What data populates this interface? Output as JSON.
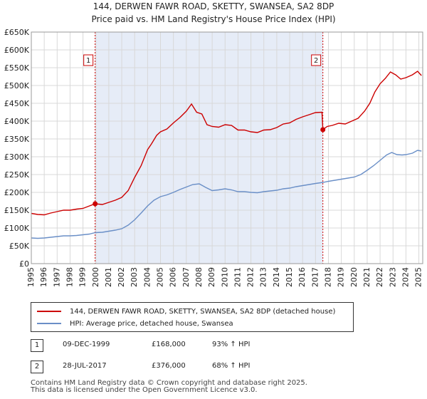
{
  "colors": {
    "property": "#cc0000",
    "hpi": "#6a8fc7",
    "shade": "#e6ecf7",
    "grid": "#d8d8d8"
  },
  "chart_data": {
    "type": "line",
    "title": "144, DERWEN FAWR ROAD, SKETTY, SWANSEA, SA2 8DP",
    "subtitle": "Price paid vs. HM Land Registry's House Price Index (HPI)",
    "ylim": [
      0,
      650000
    ],
    "xlim": [
      1995,
      2025.3
    ],
    "y_ticks": [
      0,
      50000,
      100000,
      150000,
      200000,
      250000,
      300000,
      350000,
      400000,
      450000,
      500000,
      550000,
      600000,
      650000
    ],
    "y_tick_labels": [
      "£0",
      "£50K",
      "£100K",
      "£150K",
      "£200K",
      "£250K",
      "£300K",
      "£350K",
      "£400K",
      "£450K",
      "£500K",
      "£550K",
      "£600K",
      "£650K"
    ],
    "x_ticks": [
      1995,
      1996,
      1997,
      1998,
      1999,
      2000,
      2001,
      2002,
      2003,
      2004,
      2005,
      2006,
      2007,
      2008,
      2009,
      2010,
      2011,
      2012,
      2013,
      2014,
      2015,
      2016,
      2017,
      2018,
      2019,
      2020,
      2021,
      2022,
      2023,
      2024,
      2025
    ],
    "x_tick_labels": [
      "1995",
      "1996",
      "1997",
      "1998",
      "1999",
      "2000",
      "2001",
      "2002",
      "2003",
      "2004",
      "2005",
      "2006",
      "2007",
      "2008",
      "2009",
      "2010",
      "2011",
      "2012",
      "2013",
      "2014",
      "2015",
      "2016",
      "2017",
      "2018",
      "2019",
      "2020",
      "2021",
      "2022",
      "2023",
      "2024",
      "2025"
    ],
    "grid": true,
    "shaded_period": [
      1999.94,
      2017.57
    ],
    "series": [
      {
        "name": "144, DERWEN FAWR ROAD, SKETTY, SWANSEA, SA2 8DP (detached house)",
        "points": [
          [
            1995.0,
            141000
          ],
          [
            1995.5,
            138000
          ],
          [
            1996.0,
            137000
          ],
          [
            1996.5,
            142000
          ],
          [
            1997.0,
            146000
          ],
          [
            1997.5,
            150000
          ],
          [
            1998.0,
            150000
          ],
          [
            1998.5,
            153000
          ],
          [
            1999.0,
            155000
          ],
          [
            1999.5,
            162000
          ],
          [
            1999.94,
            168000
          ],
          [
            2000.5,
            166000
          ],
          [
            2001.0,
            172000
          ],
          [
            2001.5,
            178000
          ],
          [
            2002.0,
            186000
          ],
          [
            2002.5,
            205000
          ],
          [
            2003.0,
            242000
          ],
          [
            2003.5,
            275000
          ],
          [
            2004.0,
            320000
          ],
          [
            2004.3,
            336000
          ],
          [
            2004.7,
            360000
          ],
          [
            2005.0,
            370000
          ],
          [
            2005.5,
            378000
          ],
          [
            2006.0,
            395000
          ],
          [
            2006.5,
            410000
          ],
          [
            2007.0,
            428000
          ],
          [
            2007.4,
            448000
          ],
          [
            2007.8,
            425000
          ],
          [
            2008.2,
            420000
          ],
          [
            2008.6,
            390000
          ],
          [
            2009.0,
            385000
          ],
          [
            2009.5,
            383000
          ],
          [
            2010.0,
            390000
          ],
          [
            2010.5,
            388000
          ],
          [
            2011.0,
            375000
          ],
          [
            2011.5,
            375000
          ],
          [
            2012.0,
            370000
          ],
          [
            2012.5,
            368000
          ],
          [
            2013.0,
            375000
          ],
          [
            2013.5,
            376000
          ],
          [
            2014.0,
            382000
          ],
          [
            2014.5,
            392000
          ],
          [
            2015.0,
            395000
          ],
          [
            2015.5,
            405000
          ],
          [
            2016.0,
            412000
          ],
          [
            2016.5,
            418000
          ],
          [
            2017.0,
            424000
          ],
          [
            2017.5,
            425000
          ],
          [
            2017.57,
            376000
          ],
          [
            2017.9,
            385000
          ],
          [
            2018.3,
            388000
          ],
          [
            2018.8,
            394000
          ],
          [
            2019.3,
            392000
          ],
          [
            2019.8,
            400000
          ],
          [
            2020.3,
            408000
          ],
          [
            2020.8,
            428000
          ],
          [
            2021.2,
            450000
          ],
          [
            2021.6,
            482000
          ],
          [
            2022.0,
            505000
          ],
          [
            2022.4,
            520000
          ],
          [
            2022.8,
            538000
          ],
          [
            2023.2,
            530000
          ],
          [
            2023.6,
            518000
          ],
          [
            2024.0,
            522000
          ],
          [
            2024.5,
            530000
          ],
          [
            2024.9,
            540000
          ],
          [
            2025.2,
            528000
          ]
        ]
      },
      {
        "name": "HPI: Average price, detached house, Swansea",
        "points": [
          [
            1995.0,
            72000
          ],
          [
            1995.5,
            71000
          ],
          [
            1996.0,
            72000
          ],
          [
            1996.5,
            74000
          ],
          [
            1997.0,
            76000
          ],
          [
            1997.5,
            78000
          ],
          [
            1998.0,
            78000
          ],
          [
            1998.5,
            79000
          ],
          [
            1999.0,
            81000
          ],
          [
            1999.5,
            83000
          ],
          [
            1999.94,
            87000
          ],
          [
            2000.5,
            88000
          ],
          [
            2001.0,
            91000
          ],
          [
            2001.5,
            94000
          ],
          [
            2002.0,
            98000
          ],
          [
            2002.5,
            108000
          ],
          [
            2003.0,
            123000
          ],
          [
            2003.5,
            142000
          ],
          [
            2004.0,
            162000
          ],
          [
            2004.5,
            178000
          ],
          [
            2005.0,
            188000
          ],
          [
            2005.5,
            193000
          ],
          [
            2006.0,
            200000
          ],
          [
            2006.5,
            208000
          ],
          [
            2007.0,
            215000
          ],
          [
            2007.5,
            222000
          ],
          [
            2008.0,
            224000
          ],
          [
            2008.5,
            214000
          ],
          [
            2009.0,
            205000
          ],
          [
            2009.5,
            207000
          ],
          [
            2010.0,
            210000
          ],
          [
            2010.5,
            207000
          ],
          [
            2011.0,
            202000
          ],
          [
            2011.5,
            202000
          ],
          [
            2012.0,
            200000
          ],
          [
            2012.5,
            199000
          ],
          [
            2013.0,
            202000
          ],
          [
            2013.5,
            204000
          ],
          [
            2014.0,
            206000
          ],
          [
            2014.5,
            210000
          ],
          [
            2015.0,
            212000
          ],
          [
            2015.5,
            216000
          ],
          [
            2016.0,
            219000
          ],
          [
            2016.5,
            222000
          ],
          [
            2017.0,
            225000
          ],
          [
            2017.57,
            228000
          ],
          [
            2018.0,
            231000
          ],
          [
            2018.5,
            234000
          ],
          [
            2019.0,
            237000
          ],
          [
            2019.5,
            240000
          ],
          [
            2020.0,
            243000
          ],
          [
            2020.5,
            250000
          ],
          [
            2021.0,
            262000
          ],
          [
            2021.5,
            275000
          ],
          [
            2022.0,
            290000
          ],
          [
            2022.5,
            305000
          ],
          [
            2022.9,
            312000
          ],
          [
            2023.3,
            306000
          ],
          [
            2023.7,
            305000
          ],
          [
            2024.0,
            306000
          ],
          [
            2024.5,
            310000
          ],
          [
            2024.9,
            318000
          ],
          [
            2025.2,
            316000
          ]
        ]
      }
    ],
    "sales": [
      {
        "label": "1",
        "x": 1999.94,
        "y": 168000
      },
      {
        "label": "2",
        "x": 2017.57,
        "y": 376000
      }
    ]
  },
  "legend": {
    "property_label": "144, DERWEN FAWR ROAD, SKETTY, SWANSEA, SA2 8DP (detached house)",
    "hpi_label": "HPI: Average price, detached house, Swansea"
  },
  "transactions": [
    {
      "num": "1",
      "date": "09-DEC-1999",
      "price": "£168,000",
      "hpi": "93% ↑ HPI"
    },
    {
      "num": "2",
      "date": "28-JUL-2017",
      "price": "£376,000",
      "hpi": "68% ↑ HPI"
    }
  ],
  "footer": {
    "line1": "Contains HM Land Registry data © Crown copyright and database right 2025.",
    "line2": "This data is licensed under the Open Government Licence v3.0."
  }
}
